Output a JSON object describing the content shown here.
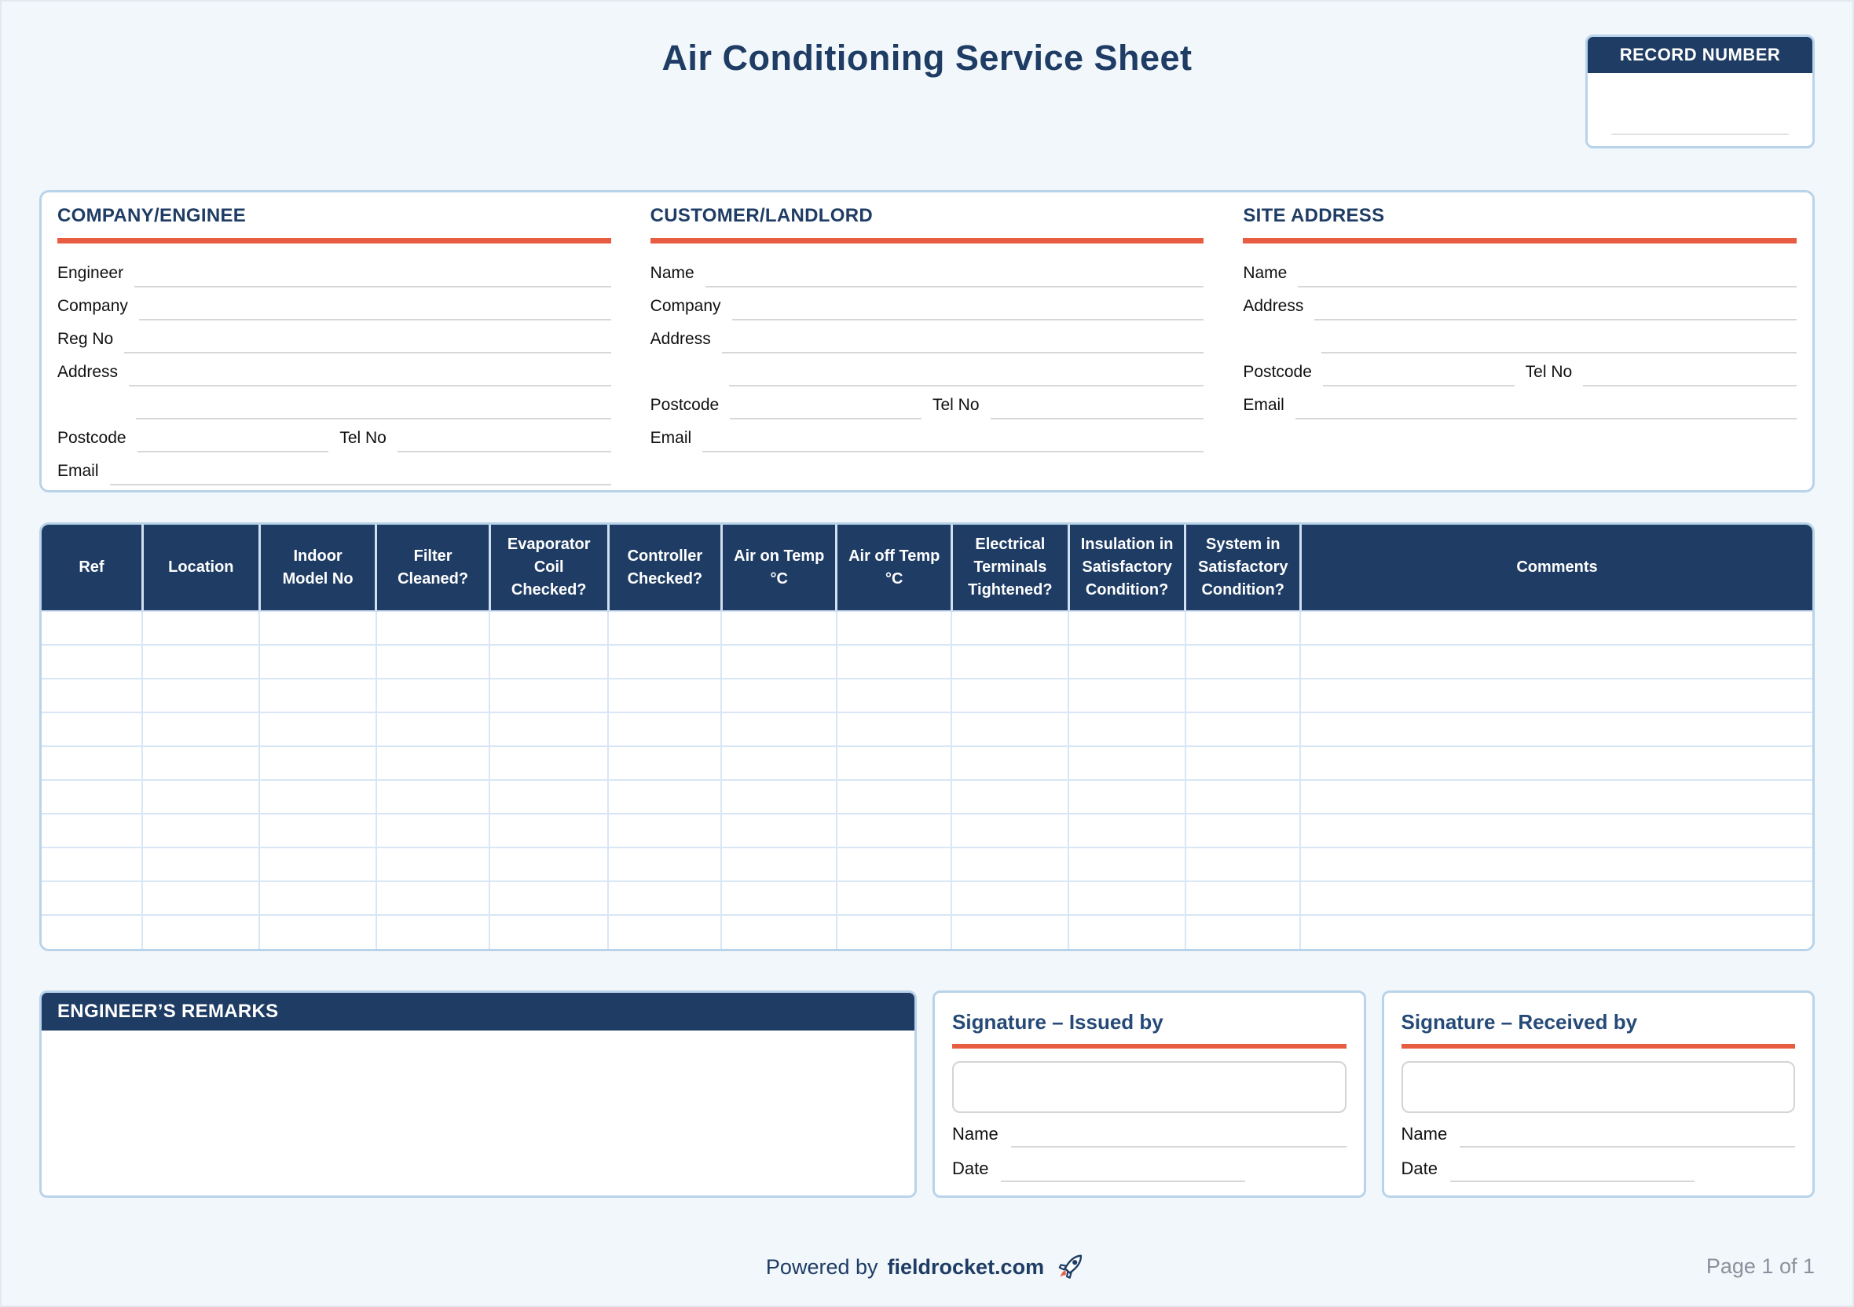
{
  "page": {
    "title": "Air Conditioning Service Sheet",
    "record": {
      "label": "RECORD NUMBER"
    }
  },
  "colors": {
    "navy": "#1e3c64",
    "accent_orange": "#e85c41",
    "card_border_blue": "#b9d3ea",
    "grid_line_blue": "#d9e6f6",
    "underline_gray": "#d7d7d7",
    "page_background": "#f1f7fb",
    "muted_gray": "#8b919c"
  },
  "sections": {
    "company": {
      "title": "COMPANY/ENGINEE",
      "labels": {
        "engineer": "Engineer",
        "company": "Company",
        "reg_no": "Reg No",
        "address": "Address",
        "postcode": "Postcode",
        "tel": "Tel No",
        "email": "Email"
      }
    },
    "customer": {
      "title": "CUSTOMER/LANDLORD",
      "labels": {
        "name": "Name",
        "company": "Company",
        "address": "Address",
        "postcode": "Postcode",
        "tel": "Tel No",
        "email": "Email"
      }
    },
    "site": {
      "title": "SITE ADDRESS",
      "labels": {
        "name": "Name",
        "address": "Address",
        "postcode": "Postcode",
        "tel": "Tel No",
        "email": "Email"
      }
    }
  },
  "table": {
    "empty_rows": 10,
    "columns": [
      {
        "key": "ref",
        "lines": [
          "Ref"
        ]
      },
      {
        "key": "location",
        "lines": [
          "Location"
        ]
      },
      {
        "key": "indoor-model-no",
        "lines": [
          "Indoor",
          "Model No"
        ]
      },
      {
        "key": "filter-cleaned",
        "lines": [
          "Filter",
          "Cleaned?"
        ]
      },
      {
        "key": "evaporator-coil-checked",
        "lines": [
          "Evaporator",
          "Coil",
          "Checked?"
        ]
      },
      {
        "key": "controller-checked",
        "lines": [
          "Controller",
          "Checked?"
        ]
      },
      {
        "key": "air-on-temp",
        "lines": [
          "Air on Temp",
          "°C"
        ]
      },
      {
        "key": "air-off-temp",
        "lines": [
          "Air off Temp",
          "°C"
        ]
      },
      {
        "key": "electrical-terminals-tightened",
        "lines": [
          "Electrical",
          "Terminals",
          "Tightened?"
        ]
      },
      {
        "key": "insulation-satisfactory",
        "lines": [
          "Insulation in",
          "Satisfactory",
          "Condition?"
        ]
      },
      {
        "key": "system-satisfactory",
        "lines": [
          "System in",
          "Satisfactory",
          "Condition?"
        ]
      },
      {
        "key": "comments",
        "lines": [
          "Comments"
        ]
      }
    ]
  },
  "remarks": {
    "title": "ENGINEER’S REMARKS"
  },
  "signatures": {
    "issued": {
      "title": "Signature – Issued by",
      "name_label": "Name",
      "date_label": "Date"
    },
    "received": {
      "title": "Signature – Received by",
      "name_label": "Name",
      "date_label": "Date"
    }
  },
  "footer": {
    "powered_by": "Powered by",
    "brand": "fieldrocket.com",
    "page_info": "Page 1 of 1"
  }
}
